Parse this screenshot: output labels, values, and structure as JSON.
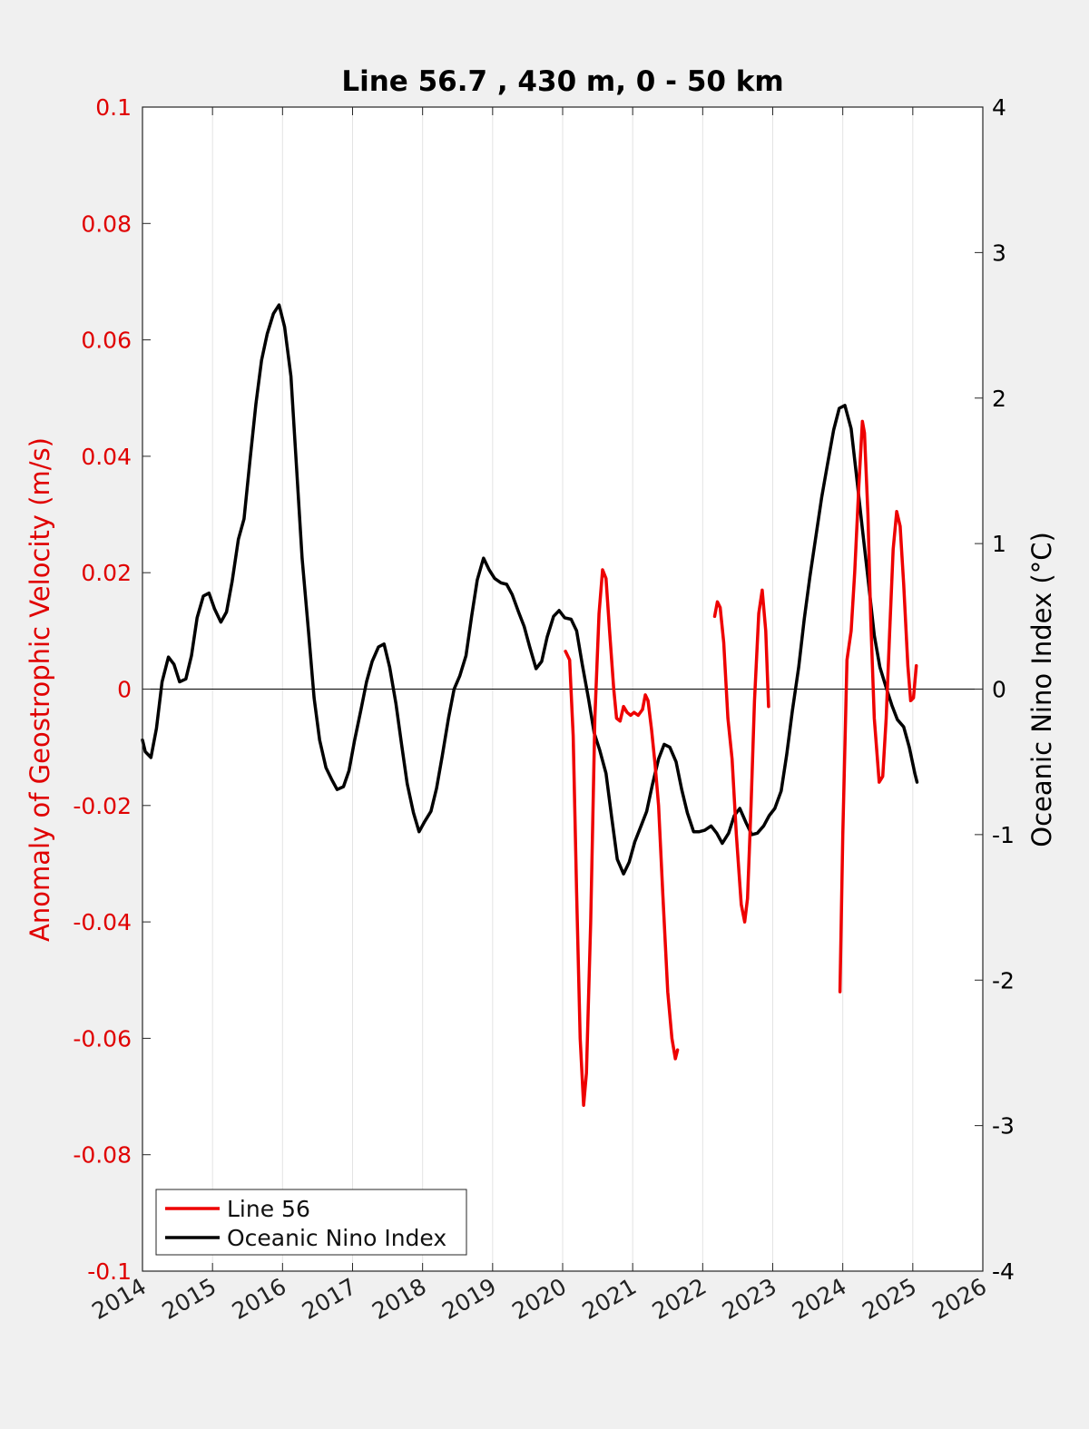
{
  "chart_data": {
    "type": "line",
    "title": "Line 56.7 , 430 m, 0 - 50 km",
    "xlim": [
      2014,
      2026
    ],
    "x_ticks": [
      "2014",
      "2015",
      "2016",
      "2017",
      "2018",
      "2019",
      "2020",
      "2021",
      "2022",
      "2023",
      "2024",
      "2025",
      "2026"
    ],
    "y_left": {
      "label": "Anomaly of Geostrophic Velocity (m/s)",
      "lim": [
        -0.1,
        0.1
      ],
      "ticks": [
        {
          "v": 0.1,
          "label": "0.1"
        },
        {
          "v": 0.08,
          "label": "0.08"
        },
        {
          "v": 0.06,
          "label": "0.06"
        },
        {
          "v": 0.04,
          "label": "0.04"
        },
        {
          "v": 0.02,
          "label": "0.02"
        },
        {
          "v": 0,
          "label": "0"
        },
        {
          "v": -0.02,
          "label": "-0.02"
        },
        {
          "v": -0.04,
          "label": "-0.04"
        },
        {
          "v": -0.06,
          "label": "-0.06"
        },
        {
          "v": -0.08,
          "label": "-0.08"
        },
        {
          "v": -0.1,
          "label": "-0.1"
        }
      ],
      "color": "#e00000"
    },
    "y_right": {
      "label": "Oceanic Nino Index (°C)",
      "lim": [
        -4,
        4
      ],
      "ticks": [
        {
          "v": 4,
          "label": "4"
        },
        {
          "v": 3,
          "label": "3"
        },
        {
          "v": 2,
          "label": "2"
        },
        {
          "v": 1,
          "label": "1"
        },
        {
          "v": 0,
          "label": "0"
        },
        {
          "v": -1,
          "label": "-1"
        },
        {
          "v": -2,
          "label": "-2"
        },
        {
          "v": -3,
          "label": "-3"
        },
        {
          "v": -4,
          "label": "-4"
        }
      ],
      "color": "#000000"
    },
    "grid": "vertical",
    "zero_line": true,
    "legend": {
      "position": "bottom-left"
    },
    "series": [
      {
        "name": "Line 56",
        "axis": "left",
        "color": "#ee0000",
        "segments": [
          [
            [
              2020.04,
              0.0065
            ],
            [
              2020.1,
              0.005
            ],
            [
              2020.15,
              -0.008
            ],
            [
              2020.2,
              -0.035
            ],
            [
              2020.25,
              -0.06
            ],
            [
              2020.3,
              -0.0715
            ],
            [
              2020.34,
              -0.066
            ],
            [
              2020.4,
              -0.04
            ],
            [
              2020.46,
              -0.005
            ],
            [
              2020.52,
              0.013
            ],
            [
              2020.57,
              0.0205
            ],
            [
              2020.62,
              0.019
            ],
            [
              2020.67,
              0.01
            ],
            [
              2020.73,
              0.0
            ],
            [
              2020.77,
              -0.005
            ],
            [
              2020.82,
              -0.0055
            ],
            [
              2020.87,
              -0.003
            ],
            [
              2020.92,
              -0.004
            ],
            [
              2020.97,
              -0.0045
            ],
            [
              2021.02,
              -0.004
            ],
            [
              2021.08,
              -0.0045
            ],
            [
              2021.14,
              -0.0035
            ],
            [
              2021.18,
              -0.001
            ],
            [
              2021.22,
              -0.002
            ],
            [
              2021.27,
              -0.007
            ],
            [
              2021.32,
              -0.013
            ],
            [
              2021.37,
              -0.02
            ],
            [
              2021.43,
              -0.035
            ],
            [
              2021.5,
              -0.052
            ],
            [
              2021.56,
              -0.06
            ],
            [
              2021.61,
              -0.0635
            ],
            [
              2021.64,
              -0.062
            ]
          ],
          [
            [
              2022.17,
              0.0125
            ],
            [
              2022.21,
              0.015
            ],
            [
              2022.25,
              0.014
            ],
            [
              2022.3,
              0.008
            ],
            [
              2022.36,
              -0.005
            ],
            [
              2022.42,
              -0.012
            ],
            [
              2022.48,
              -0.025
            ],
            [
              2022.55,
              -0.037
            ],
            [
              2022.6,
              -0.04
            ],
            [
              2022.64,
              -0.036
            ],
            [
              2022.69,
              -0.02
            ],
            [
              2022.74,
              -0.002
            ],
            [
              2022.8,
              0.013
            ],
            [
              2022.85,
              0.017
            ],
            [
              2022.9,
              0.01
            ],
            [
              2022.94,
              -0.003
            ]
          ],
          [
            [
              2023.96,
              -0.052
            ],
            [
              2024.0,
              -0.025
            ],
            [
              2024.06,
              0.005
            ],
            [
              2024.12,
              0.01
            ],
            [
              2024.17,
              0.02
            ],
            [
              2024.23,
              0.035
            ],
            [
              2024.28,
              0.046
            ],
            [
              2024.31,
              0.044
            ],
            [
              2024.36,
              0.03
            ],
            [
              2024.4,
              0.012
            ],
            [
              2024.45,
              -0.005
            ],
            [
              2024.52,
              -0.016
            ],
            [
              2024.57,
              -0.015
            ],
            [
              2024.62,
              -0.005
            ],
            [
              2024.67,
              0.01
            ],
            [
              2024.72,
              0.024
            ],
            [
              2024.77,
              0.0305
            ],
            [
              2024.82,
              0.028
            ],
            [
              2024.87,
              0.018
            ],
            [
              2024.93,
              0.004
            ],
            [
              2024.97,
              -0.002
            ],
            [
              2025.01,
              -0.0015
            ],
            [
              2025.05,
              0.004
            ]
          ]
        ]
      },
      {
        "name": "Oceanic Nino Index",
        "axis": "right",
        "color": "#000000",
        "points": [
          [
            2014.0,
            -0.35
          ],
          [
            2014.04,
            -0.43
          ],
          [
            2014.12,
            -0.47
          ],
          [
            2014.2,
            -0.27
          ],
          [
            2014.28,
            0.05
          ],
          [
            2014.37,
            0.22
          ],
          [
            2014.45,
            0.17
          ],
          [
            2014.53,
            0.05
          ],
          [
            2014.62,
            0.07
          ],
          [
            2014.7,
            0.23
          ],
          [
            2014.78,
            0.49
          ],
          [
            2014.87,
            0.64
          ],
          [
            2014.95,
            0.66
          ],
          [
            2015.03,
            0.55
          ],
          [
            2015.12,
            0.46
          ],
          [
            2015.2,
            0.53
          ],
          [
            2015.28,
            0.74
          ],
          [
            2015.37,
            1.03
          ],
          [
            2015.45,
            1.17
          ],
          [
            2015.53,
            1.55
          ],
          [
            2015.62,
            1.96
          ],
          [
            2015.7,
            2.26
          ],
          [
            2015.78,
            2.44
          ],
          [
            2015.87,
            2.58
          ],
          [
            2015.95,
            2.64
          ],
          [
            2016.03,
            2.49
          ],
          [
            2016.12,
            2.15
          ],
          [
            2016.2,
            1.52
          ],
          [
            2016.28,
            0.9
          ],
          [
            2016.37,
            0.4
          ],
          [
            2016.45,
            -0.06
          ],
          [
            2016.53,
            -0.35
          ],
          [
            2016.62,
            -0.54
          ],
          [
            2016.7,
            -0.62
          ],
          [
            2016.78,
            -0.69
          ],
          [
            2016.87,
            -0.67
          ],
          [
            2016.95,
            -0.56
          ],
          [
            2017.03,
            -0.35
          ],
          [
            2017.12,
            -0.14
          ],
          [
            2017.2,
            0.05
          ],
          [
            2017.28,
            0.19
          ],
          [
            2017.37,
            0.29
          ],
          [
            2017.45,
            0.31
          ],
          [
            2017.53,
            0.15
          ],
          [
            2017.62,
            -0.1
          ],
          [
            2017.7,
            -0.38
          ],
          [
            2017.78,
            -0.65
          ],
          [
            2017.87,
            -0.85
          ],
          [
            2017.95,
            -0.98
          ],
          [
            2018.03,
            -0.91
          ],
          [
            2018.12,
            -0.84
          ],
          [
            2018.2,
            -0.68
          ],
          [
            2018.28,
            -0.46
          ],
          [
            2018.37,
            -0.2
          ],
          [
            2018.45,
            0.0
          ],
          [
            2018.53,
            0.09
          ],
          [
            2018.62,
            0.23
          ],
          [
            2018.7,
            0.5
          ],
          [
            2018.78,
            0.75
          ],
          [
            2018.87,
            0.9
          ],
          [
            2018.95,
            0.82
          ],
          [
            2019.03,
            0.76
          ],
          [
            2019.12,
            0.73
          ],
          [
            2019.2,
            0.72
          ],
          [
            2019.28,
            0.65
          ],
          [
            2019.37,
            0.53
          ],
          [
            2019.45,
            0.43
          ],
          [
            2019.53,
            0.29
          ],
          [
            2019.62,
            0.14
          ],
          [
            2019.7,
            0.19
          ],
          [
            2019.78,
            0.36
          ],
          [
            2019.87,
            0.5
          ],
          [
            2019.95,
            0.54
          ],
          [
            2020.03,
            0.49
          ],
          [
            2020.12,
            0.48
          ],
          [
            2020.2,
            0.4
          ],
          [
            2020.28,
            0.17
          ],
          [
            2020.37,
            -0.07
          ],
          [
            2020.45,
            -0.3
          ],
          [
            2020.53,
            -0.42
          ],
          [
            2020.62,
            -0.58
          ],
          [
            2020.7,
            -0.88
          ],
          [
            2020.78,
            -1.17
          ],
          [
            2020.87,
            -1.27
          ],
          [
            2020.95,
            -1.19
          ],
          [
            2021.03,
            -1.05
          ],
          [
            2021.12,
            -0.94
          ],
          [
            2021.2,
            -0.84
          ],
          [
            2021.28,
            -0.66
          ],
          [
            2021.37,
            -0.48
          ],
          [
            2021.45,
            -0.38
          ],
          [
            2021.53,
            -0.4
          ],
          [
            2021.62,
            -0.5
          ],
          [
            2021.7,
            -0.69
          ],
          [
            2021.78,
            -0.85
          ],
          [
            2021.87,
            -0.98
          ],
          [
            2021.95,
            -0.98
          ],
          [
            2022.03,
            -0.97
          ],
          [
            2022.12,
            -0.94
          ],
          [
            2022.2,
            -0.99
          ],
          [
            2022.28,
            -1.06
          ],
          [
            2022.37,
            -0.99
          ],
          [
            2022.45,
            -0.87
          ],
          [
            2022.53,
            -0.82
          ],
          [
            2022.62,
            -0.92
          ],
          [
            2022.7,
            -1.0
          ],
          [
            2022.78,
            -0.99
          ],
          [
            2022.87,
            -0.94
          ],
          [
            2022.95,
            -0.87
          ],
          [
            2023.03,
            -0.82
          ],
          [
            2023.12,
            -0.7
          ],
          [
            2023.2,
            -0.45
          ],
          [
            2023.28,
            -0.15
          ],
          [
            2023.37,
            0.15
          ],
          [
            2023.45,
            0.48
          ],
          [
            2023.53,
            0.77
          ],
          [
            2023.62,
            1.06
          ],
          [
            2023.7,
            1.32
          ],
          [
            2023.78,
            1.54
          ],
          [
            2023.87,
            1.78
          ],
          [
            2023.95,
            1.93
          ],
          [
            2024.03,
            1.95
          ],
          [
            2024.12,
            1.79
          ],
          [
            2024.2,
            1.45
          ],
          [
            2024.28,
            1.1
          ],
          [
            2024.37,
            0.72
          ],
          [
            2024.45,
            0.37
          ],
          [
            2024.53,
            0.15
          ],
          [
            2024.62,
            0.01
          ],
          [
            2024.7,
            -0.11
          ],
          [
            2024.78,
            -0.21
          ],
          [
            2024.87,
            -0.26
          ],
          [
            2024.95,
            -0.4
          ],
          [
            2025.03,
            -0.58
          ],
          [
            2025.06,
            -0.64
          ]
        ]
      }
    ]
  }
}
